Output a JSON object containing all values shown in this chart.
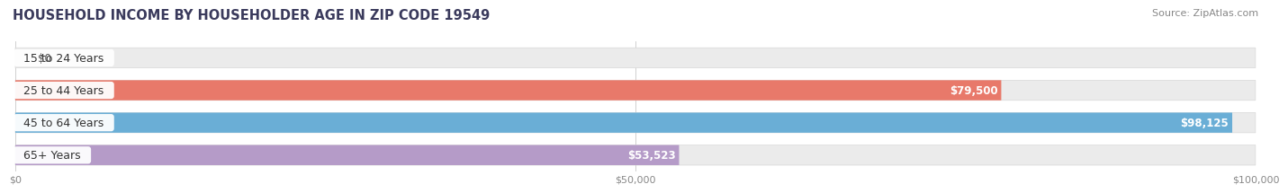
{
  "title": "HOUSEHOLD INCOME BY HOUSEHOLDER AGE IN ZIP CODE 19549",
  "source": "Source: ZipAtlas.com",
  "categories": [
    "15 to 24 Years",
    "25 to 44 Years",
    "45 to 64 Years",
    "65+ Years"
  ],
  "values": [
    0,
    79500,
    98125,
    53523
  ],
  "value_labels": [
    "$0",
    "$79,500",
    "$98,125",
    "$53,523"
  ],
  "bar_colors": [
    "#f5c990",
    "#e8796a",
    "#6aaed6",
    "#b59bc8"
  ],
  "bar_bg_color": "#ebebeb",
  "bar_bg_edge_color": "#d8d8d8",
  "xlim": [
    0,
    100000
  ],
  "xticks": [
    0,
    50000,
    100000
  ],
  "xtick_labels": [
    "$0",
    "$50,000",
    "$100,000"
  ],
  "background_color": "#ffffff",
  "title_fontsize": 10.5,
  "source_fontsize": 8,
  "label_fontsize": 9,
  "bar_height": 0.62,
  "grid_color": "#d0d0d0"
}
